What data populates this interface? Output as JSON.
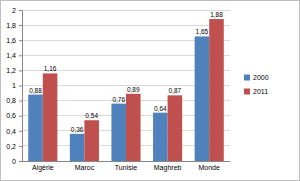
{
  "chart_data": {
    "type": "bar",
    "categories": [
      "Algérie",
      "Maroc",
      "Tunisie",
      "Maghreb",
      "Monde"
    ],
    "series": [
      {
        "name": "2000",
        "color": "#4f81bd",
        "values": [
          0.88,
          0.36,
          0.76,
          0.64,
          1.65
        ],
        "value_labels": [
          "0,88",
          "0,36",
          "0,76",
          "0,64",
          "1,65"
        ]
      },
      {
        "name": "2011",
        "color": "#c0504d",
        "values": [
          1.16,
          0.54,
          0.89,
          0.87,
          1.88
        ],
        "value_labels": [
          "1,16",
          "0,54",
          "0,89",
          "0,87",
          "1,88"
        ]
      }
    ],
    "ylim": [
      0,
      2
    ],
    "yticks": [
      0,
      {
        "value": 0.2,
        "label": "0,2"
      },
      {
        "value": 0.4,
        "label": "0,4"
      },
      {
        "value": 0.6,
        "label": "0,6"
      },
      {
        "value": 0.8,
        "label": "0,8"
      },
      1,
      {
        "value": 1.2,
        "label": "1,2"
      },
      {
        "value": 1.4,
        "label": "1,4"
      },
      {
        "value": 1.6,
        "label": "1,6"
      },
      {
        "value": 1.8,
        "label": "1,8"
      },
      2
    ],
    "grid": true,
    "data_labels": true,
    "legend": "right"
  }
}
